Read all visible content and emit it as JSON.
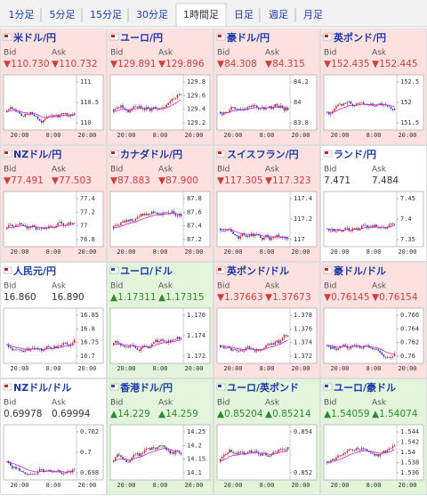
{
  "tabs": [
    "1分足",
    "5分足",
    "15分足",
    "30分足",
    "1時間足",
    "日足",
    "週足",
    "月足"
  ],
  "selected_tab": 4,
  "bid_label": "Bid",
  "ask_label": "Ask",
  "xticks": [
    "20:00",
    "8:00",
    "20:00"
  ],
  "cells": [
    {
      "name": "米ドル/円",
      "trend": "▼",
      "bid": "110.730",
      "ask": "110.732",
      "yticks": [
        "111",
        "110.5",
        "110"
      ]
    },
    {
      "name": "ユーロ/円",
      "trend": "▼",
      "bid": "129.891",
      "ask": "129.896",
      "yticks": [
        "129.8",
        "129.6",
        "129.4",
        "129.2"
      ]
    },
    {
      "name": "豪ドル/円",
      "trend": "▼",
      "bid": "84.308",
      "ask": "84.315",
      "yticks": [
        "84.2",
        "84",
        "83.8"
      ]
    },
    {
      "name": "英ポンド/円",
      "trend": "▼",
      "bid": "152.435",
      "ask": "152.445",
      "yticks": [
        "152.5",
        "152",
        "151.5"
      ]
    },
    {
      "name": "NZドル/円",
      "trend": "▼",
      "bid": "77.491",
      "ask": "77.503",
      "yticks": [
        "77.4",
        "77.2",
        "77",
        "76.8"
      ]
    },
    {
      "name": "カナダドル/円",
      "trend": "▼",
      "bid": "87.883",
      "ask": "87.900",
      "yticks": [
        "87.8",
        "87.6",
        "87.4",
        "87.2"
      ]
    },
    {
      "name": "スイスフラン/円",
      "trend": "▼",
      "bid": "117.305",
      "ask": "117.323",
      "yticks": [
        "117.4",
        "117.2",
        "117"
      ]
    },
    {
      "name": "ランド/円",
      "bid": "7.471",
      "ask": "7.484",
      "yticks": [
        "7.45",
        "7.4",
        "7.35"
      ]
    },
    {
      "name": "人民元/円",
      "bid": "16.860",
      "ask": "16.890",
      "yticks": [
        "16.85",
        "16.8",
        "16.75",
        "16.7"
      ]
    },
    {
      "name": "ユーロ/ドル",
      "trend": "▲",
      "bid": "1.17311",
      "ask": "1.17315",
      "yticks": [
        "1.176",
        "1.174",
        "1.172"
      ]
    },
    {
      "name": "英ポンド/ドル",
      "trend": "▼",
      "bid": "1.37663",
      "ask": "1.37673",
      "yticks": [
        "1.378",
        "1.376",
        "1.374",
        "1.372"
      ]
    },
    {
      "name": "豪ドル/ドル",
      "trend": "▼",
      "bid": "0.76145",
      "ask": "0.76154",
      "yticks": [
        "0.766",
        "0.764",
        "0.762",
        "0.76"
      ]
    },
    {
      "name": "NZドル/ドル",
      "bid": "0.69978",
      "ask": "0.69994",
      "yticks": [
        "0.702",
        "0.7",
        "0.698"
      ]
    },
    {
      "name": "香港ドル/円",
      "trend": "▲",
      "bid": "14.229",
      "ask": "14.259",
      "yticks": [
        "14.25",
        "14.2",
        "14.15",
        "14.1"
      ]
    },
    {
      "name": "ユーロ/英ポンド",
      "trend": "▲",
      "bid": "0.85204",
      "ask": "0.85214",
      "yticks": [
        "0.854",
        "0.852"
      ]
    },
    {
      "name": "ユーロ/豪ドル",
      "trend": "▲",
      "bid": "1.54059",
      "ask": "1.54074",
      "yticks": [
        "1.544",
        "1.542",
        "1.54",
        "1.538",
        "1.536"
      ]
    }
  ]
}
